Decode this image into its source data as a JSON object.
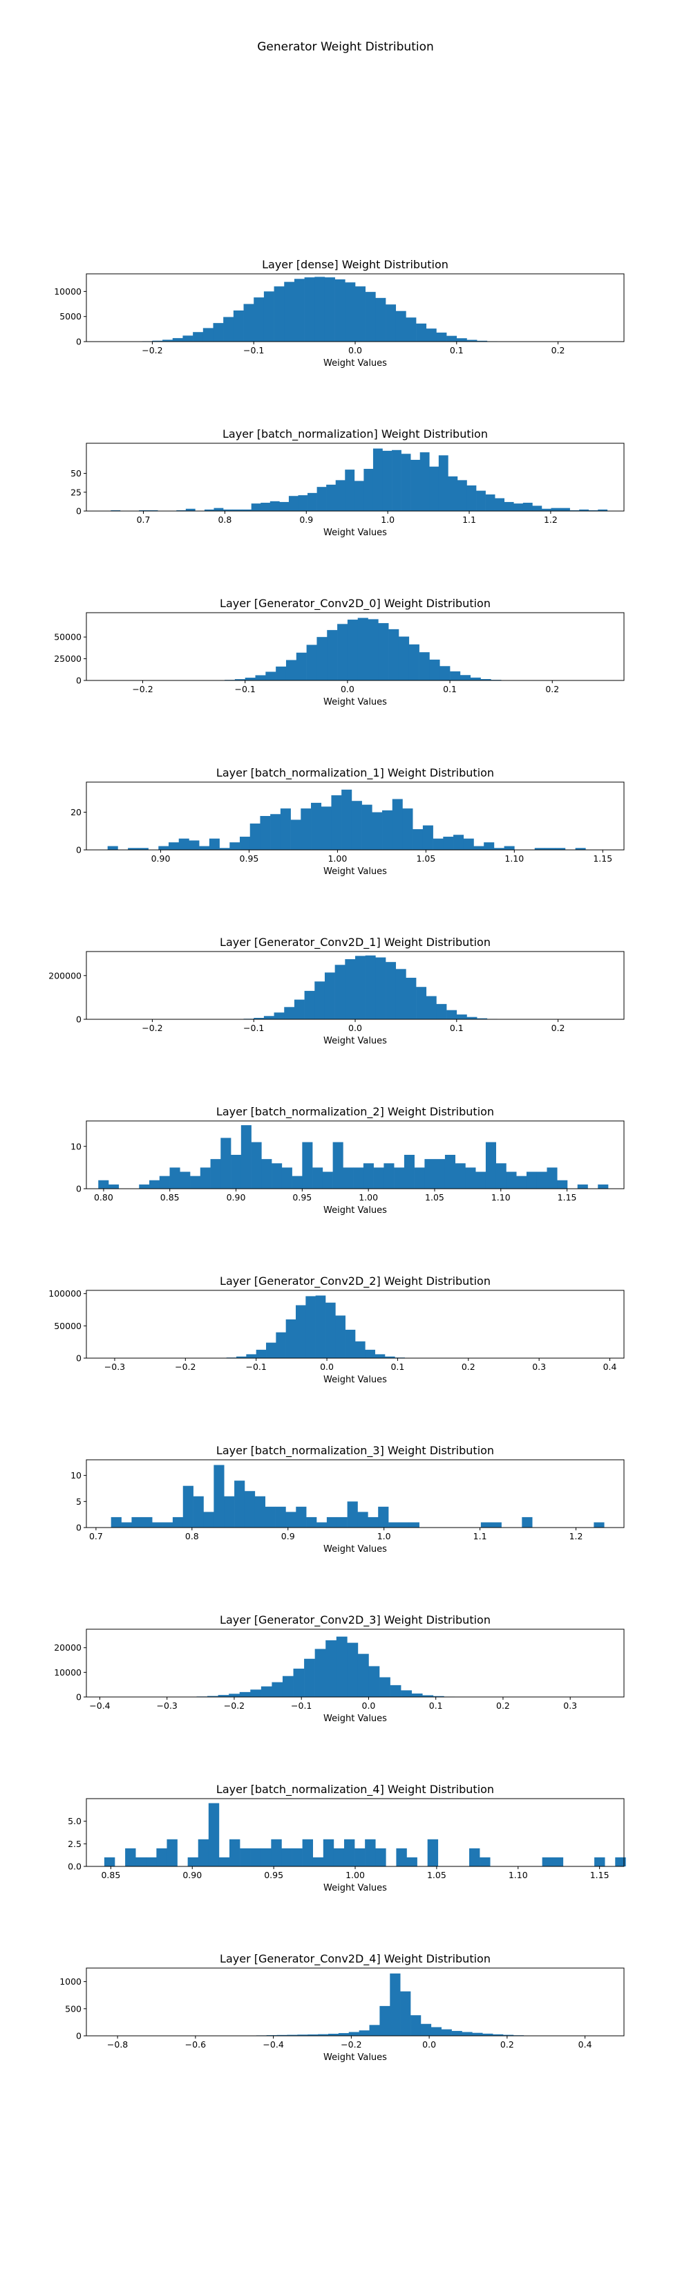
{
  "page_title": "Generator Weight Distribution",
  "chart_data": [
    {
      "type": "bar",
      "title": "Layer [dense] Weight Distribution",
      "xlabel": "Weight Values",
      "ylabel": "",
      "color": "#1f77b4",
      "xlim": [
        -0.265,
        0.265
      ],
      "ylim": [
        0,
        13500
      ],
      "xticks": [
        -0.2,
        -0.1,
        0.0,
        0.1,
        0.2
      ],
      "xtick_labels": [
        "−0.2",
        "−0.1",
        "0.0",
        "0.1",
        "0.2"
      ],
      "yticks": [
        0,
        5000,
        10000
      ],
      "ytick_labels": [
        "0",
        "5000",
        "10000"
      ],
      "bins": {
        "start": -0.24,
        "width": 0.01
      },
      "values": [
        2,
        10,
        30,
        80,
        180,
        370,
        700,
        1200,
        1900,
        2700,
        3700,
        4900,
        6200,
        7500,
        8800,
        10000,
        11000,
        11900,
        12500,
        12800,
        12900,
        12800,
        12400,
        11800,
        11000,
        9900,
        8700,
        7400,
        6100,
        4800,
        3600,
        2600,
        1800,
        1150,
        670,
        350,
        170,
        75,
        30,
        10,
        3,
        1
      ]
    },
    {
      "type": "bar",
      "title": "Layer [batch_normalization] Weight Distribution",
      "xlabel": "Weight Values",
      "ylabel": "",
      "color": "#1f77b4",
      "xlim": [
        0.63,
        1.29
      ],
      "ylim": [
        0,
        90
      ],
      "xticks": [
        0.7,
        0.8,
        0.9,
        1.0,
        1.1,
        1.2
      ],
      "xtick_labels": [
        "0.7",
        "0.8",
        "0.9",
        "1.0",
        "1.1",
        "1.2"
      ],
      "yticks": [
        0,
        25,
        50
      ],
      "ytick_labels": [
        "0",
        "25",
        "50"
      ],
      "bins": {
        "start": 0.66,
        "width": 0.0115
      },
      "values": [
        1,
        0,
        0,
        1,
        1,
        0,
        0,
        1,
        3,
        0,
        2,
        4,
        2,
        2,
        2,
        10,
        11,
        13,
        12,
        20,
        21,
        24,
        32,
        35,
        41,
        55,
        40,
        56,
        83,
        80,
        81,
        76,
        68,
        78,
        59,
        74,
        46,
        41,
        34,
        27,
        22,
        17,
        12,
        10,
        11,
        7,
        3,
        4,
        4,
        1,
        2,
        1,
        2
      ]
    },
    {
      "type": "bar",
      "title": "Layer [Generator_Conv2D_0] Weight Distribution",
      "xlabel": "Weight Values",
      "ylabel": "",
      "color": "#1f77b4",
      "xlim": [
        -0.255,
        0.27
      ],
      "ylim": [
        0,
        78000
      ],
      "xticks": [
        -0.2,
        -0.1,
        0.0,
        0.1,
        0.2
      ],
      "xtick_labels": [
        "−0.2",
        "−0.1",
        "0.0",
        "0.1",
        "0.2"
      ],
      "yticks": [
        0,
        25000,
        50000
      ],
      "ytick_labels": [
        "0",
        "25000",
        "50000"
      ],
      "bins": {
        "start": -0.2,
        "width": 0.01
      },
      "values": [
        0,
        0,
        1,
        3,
        10,
        30,
        90,
        250,
        650,
        1500,
        3200,
        6000,
        10000,
        16000,
        23500,
        32000,
        41000,
        50000,
        58000,
        65000,
        70000,
        72000,
        70500,
        66000,
        59000,
        50500,
        41500,
        32500,
        24000,
        16500,
        10500,
        6200,
        3300,
        1600,
        700,
        280,
        100,
        35,
        10,
        3,
        1
      ]
    },
    {
      "type": "bar",
      "title": "Layer [batch_normalization_1] Weight Distribution",
      "xlabel": "Weight Values",
      "ylabel": "",
      "color": "#1f77b4",
      "xlim": [
        0.858,
        1.162
      ],
      "ylim": [
        0,
        36
      ],
      "xticks": [
        0.9,
        0.95,
        1.0,
        1.05,
        1.1,
        1.15
      ],
      "xtick_labels": [
        "0.90",
        "0.95",
        "1.00",
        "1.05",
        "1.10",
        "1.15"
      ],
      "yticks": [
        0,
        20
      ],
      "ytick_labels": [
        "0",
        "20"
      ],
      "bins": {
        "start": 0.87,
        "width": 0.00575
      },
      "values": [
        2,
        0,
        1,
        1,
        0,
        2,
        4,
        6,
        5,
        2,
        6,
        1,
        4,
        7,
        14,
        18,
        19,
        22,
        16,
        22,
        25,
        23,
        29,
        32,
        26,
        24,
        20,
        21,
        27,
        22,
        11,
        13,
        6,
        7,
        8,
        6,
        2,
        4,
        1,
        2,
        0,
        0,
        1,
        1,
        1,
        0,
        1,
        0
      ]
    },
    {
      "type": "bar",
      "title": "Layer [Generator_Conv2D_1] Weight Distribution",
      "xlabel": "Weight Values",
      "ylabel": "",
      "color": "#1f77b4",
      "xlim": [
        -0.265,
        0.265
      ],
      "ylim": [
        0,
        310000
      ],
      "xticks": [
        -0.2,
        -0.1,
        0.0,
        0.1,
        0.2
      ],
      "xtick_labels": [
        "−0.2",
        "−0.1",
        "0.0",
        "0.1",
        "0.2"
      ],
      "yticks": [
        0,
        200000
      ],
      "ytick_labels": [
        "0",
        "200000"
      ],
      "bins": {
        "start": -0.19,
        "width": 0.01
      },
      "values": [
        0,
        1,
        3,
        10,
        35,
        100,
        300,
        900,
        2500,
        6500,
        15000,
        31000,
        56000,
        90000,
        130000,
        173000,
        214000,
        249000,
        275000,
        290000,
        292000,
        283000,
        262000,
        230000,
        190000,
        148000,
        106000,
        70000,
        42000,
        22000,
        10500,
        4500,
        1700,
        600,
        200,
        60,
        18,
        5,
        1
      ]
    },
    {
      "type": "bar",
      "title": "Layer [batch_normalization_2] Weight Distribution",
      "xlabel": "Weight Values",
      "ylabel": "",
      "color": "#1f77b4",
      "xlim": [
        0.787,
        1.193
      ],
      "ylim": [
        0,
        16
      ],
      "xticks": [
        0.8,
        0.85,
        0.9,
        0.95,
        1.0,
        1.05,
        1.1,
        1.15
      ],
      "xtick_labels": [
        "0.80",
        "0.85",
        "0.90",
        "0.95",
        "1.00",
        "1.05",
        "1.10",
        "1.15"
      ],
      "yticks": [
        0,
        10
      ],
      "ytick_labels": [
        "0",
        "10"
      ],
      "bins": {
        "start": 0.796,
        "width": 0.0077
      },
      "values": [
        2,
        1,
        0,
        0,
        1,
        2,
        3,
        5,
        4,
        3,
        5,
        7,
        12,
        8,
        15,
        11,
        7,
        6,
        5,
        3,
        11,
        5,
        4,
        11,
        5,
        5,
        6,
        5,
        6,
        5,
        8,
        5,
        7,
        7,
        8,
        6,
        5,
        4,
        11,
        6,
        4,
        3,
        4,
        4,
        5,
        2,
        0,
        1,
        0,
        1
      ]
    },
    {
      "type": "bar",
      "title": "Layer [Generator_Conv2D_2] Weight Distribution",
      "xlabel": "Weight Values",
      "ylabel": "",
      "color": "#1f77b4",
      "xlim": [
        -0.34,
        0.42
      ],
      "ylim": [
        0,
        105000
      ],
      "xticks": [
        -0.3,
        -0.2,
        -0.1,
        0.0,
        0.1,
        0.2,
        0.3,
        0.4
      ],
      "xtick_labels": [
        "−0.3",
        "−0.2",
        "−0.1",
        "0.0",
        "0.1",
        "0.2",
        "0.3",
        "0.4"
      ],
      "yticks": [
        0,
        50000,
        100000
      ],
      "ytick_labels": [
        "0",
        "50000",
        "100000"
      ],
      "bins": {
        "start": -0.24,
        "width": 0.014
      },
      "values": [
        0,
        1,
        3,
        10,
        30,
        100,
        300,
        900,
        2500,
        6000,
        13000,
        24000,
        40000,
        60000,
        82000,
        96000,
        97000,
        86000,
        66000,
        44000,
        26000,
        13000,
        6000,
        2500,
        900,
        300,
        100,
        30,
        10,
        3,
        1
      ]
    },
    {
      "type": "bar",
      "title": "Layer [batch_normalization_3] Weight Distribution",
      "xlabel": "Weight Values",
      "ylabel": "",
      "color": "#1f77b4",
      "xlim": [
        0.69,
        1.25
      ],
      "ylim": [
        0,
        13
      ],
      "xticks": [
        0.7,
        0.8,
        0.9,
        1.0,
        1.1,
        1.2
      ],
      "xtick_labels": [
        "0.7",
        "0.8",
        "0.9",
        "1.0",
        "1.1",
        "1.2"
      ],
      "yticks": [
        0,
        5,
        10
      ],
      "ytick_labels": [
        "0",
        "5",
        "10"
      ],
      "bins": {
        "start": 0.705,
        "width": 0.0107
      },
      "values": [
        0,
        2,
        1,
        2,
        2,
        1,
        1,
        2,
        8,
        6,
        3,
        12,
        6,
        9,
        7,
        6,
        4,
        4,
        3,
        4,
        2,
        1,
        2,
        2,
        5,
        3,
        2,
        4,
        1,
        1,
        1,
        0,
        0,
        0,
        0,
        0,
        0,
        1,
        1,
        0,
        0,
        2,
        0,
        0,
        0,
        0,
        0,
        0,
        1
      ]
    },
    {
      "type": "bar",
      "title": "Layer [Generator_Conv2D_3] Weight Distribution",
      "xlabel": "Weight Values",
      "ylabel": "",
      "color": "#1f77b4",
      "xlim": [
        -0.42,
        0.38
      ],
      "ylim": [
        0,
        27500
      ],
      "xticks": [
        -0.4,
        -0.3,
        -0.2,
        -0.1,
        0.0,
        0.1,
        0.2,
        0.3
      ],
      "xtick_labels": [
        "−0.4",
        "−0.3",
        "−0.2",
        "−0.1",
        "0.0",
        "0.1",
        "0.2",
        "0.3"
      ],
      "yticks": [
        0,
        10000,
        20000
      ],
      "ytick_labels": [
        "0",
        "10000",
        "20000"
      ],
      "bins": {
        "start": -0.32,
        "width": 0.016
      },
      "values": [
        2,
        10,
        30,
        80,
        200,
        400,
        800,
        1300,
        2000,
        3000,
        4300,
        6000,
        8500,
        11500,
        15500,
        19500,
        23000,
        24500,
        22000,
        17500,
        12500,
        8000,
        4800,
        2700,
        1400,
        700,
        350,
        150,
        60,
        20,
        5
      ]
    },
    {
      "type": "bar",
      "title": "Layer [batch_normalization_4] Weight Distribution",
      "xlabel": "Weight Values",
      "ylabel": "",
      "color": "#1f77b4",
      "xlim": [
        0.835,
        1.165
      ],
      "ylim": [
        0,
        7.5
      ],
      "xticks": [
        0.85,
        0.9,
        0.95,
        1.0,
        1.05,
        1.1,
        1.15
      ],
      "xtick_labels": [
        "0.85",
        "0.90",
        "0.95",
        "1.00",
        "1.05",
        "1.10",
        "1.15"
      ],
      "yticks": [
        0,
        2.5,
        5.0
      ],
      "ytick_labels": [
        "0.0",
        "2.5",
        "5.0"
      ],
      "bins": {
        "start": 0.846,
        "width": 0.0064
      },
      "values": [
        1,
        0,
        2,
        1,
        1,
        2,
        3,
        0,
        1,
        3,
        7,
        1,
        3,
        2,
        2,
        2,
        3,
        2,
        2,
        3,
        1,
        3,
        2,
        3,
        2,
        3,
        2,
        0,
        2,
        1,
        0,
        3,
        0,
        0,
        0,
        2,
        1,
        0,
        0,
        0,
        0,
        0,
        1,
        1,
        0,
        0,
        0,
        1,
        0,
        1
      ]
    },
    {
      "type": "bar",
      "title": "Layer [Generator_Conv2D_4] Weight Distribution",
      "xlabel": "Weight Values",
      "ylabel": "",
      "color": "#1f77b4",
      "xlim": [
        -0.88,
        0.5
      ],
      "ylim": [
        0,
        1250
      ],
      "xticks": [
        -0.8,
        -0.6,
        -0.4,
        -0.2,
        0.0,
        0.2,
        0.4
      ],
      "xtick_labels": [
        "−0.8",
        "−0.6",
        "−0.4",
        "−0.2",
        "0.0",
        "0.2",
        "0.4"
      ],
      "yticks": [
        0,
        500,
        1000
      ],
      "ytick_labels": [
        "0",
        "500",
        "1000"
      ],
      "bins": {
        "start": -0.84,
        "width": 0.0264
      },
      "values": [
        1,
        0,
        0,
        0,
        0,
        0,
        0,
        1,
        0,
        1,
        1,
        1,
        2,
        3,
        5,
        8,
        12,
        15,
        18,
        22,
        25,
        30,
        38,
        50,
        70,
        100,
        200,
        550,
        1150,
        820,
        380,
        220,
        160,
        120,
        90,
        70,
        55,
        40,
        28,
        18,
        10,
        5,
        3,
        2,
        1,
        1
      ]
    }
  ]
}
